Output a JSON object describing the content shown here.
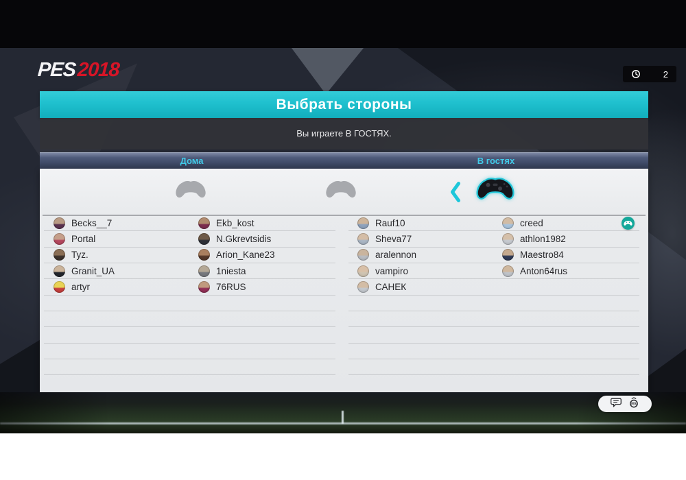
{
  "brand": {
    "pes": "PES",
    "year": "2018"
  },
  "statusbar": {
    "timer": "2"
  },
  "screen": {
    "title": "Выбрать стороны",
    "subtitle": "Вы играете В ГОСТЯХ."
  },
  "sides": {
    "home": "Дома",
    "away": "В гостях"
  },
  "controller_row": {
    "slots": [
      "idle-controller",
      "idle-controller",
      "active-controller"
    ],
    "chevron": "chevron-left-icon"
  },
  "players": {
    "home1": [
      {
        "name": "Becks__7",
        "c1": "#b99b84",
        "c2": "#5b3350"
      },
      {
        "name": "Portal",
        "c1": "#c59f8a",
        "c2": "#b5485f"
      },
      {
        "name": "Tyz.",
        "c1": "#8a6e55",
        "c2": "#3c322c"
      },
      {
        "name": "Granit_UA",
        "c1": "#cbb49b",
        "c2": "#23262c"
      },
      {
        "name": "artyr",
        "c1": "#e9d355",
        "c2": "#c8403e"
      }
    ],
    "home2": [
      {
        "name": "Ekb_kost",
        "c1": "#b08a6e",
        "c2": "#7c2d4e"
      },
      {
        "name": "N.Gkrevtsidis",
        "c1": "#6e5a48",
        "c2": "#2e3138"
      },
      {
        "name": "Arion_Kane23",
        "c1": "#a97f5f",
        "c2": "#54382a"
      },
      {
        "name": "1niesta",
        "c1": "#b4a896",
        "c2": "#77797e"
      },
      {
        "name": "76RUS",
        "c1": "#c09a7e",
        "c2": "#933057"
      }
    ],
    "away1": [
      {
        "name": "Rauf10",
        "c1": "#cdb49a",
        "c2": "#8fa3bd"
      },
      {
        "name": "Sheva77",
        "c1": "#d4bda6",
        "c2": "#aab6c4"
      },
      {
        "name": "aralennon",
        "c1": "#c9b49e",
        "c2": "#b8bcc2"
      },
      {
        "name": "vampiro",
        "c1": "#d8c0a8",
        "c2": "#cfc4b2"
      },
      {
        "name": "САНЕК",
        "c1": "#d3bda6",
        "c2": "#c3c8ce"
      }
    ],
    "away2": [
      {
        "name": "creed",
        "c1": "#d2bca4",
        "c2": "#a9c4dd",
        "badge": "controller-badge-icon"
      },
      {
        "name": "athlon1982",
        "c1": "#d5c0aa",
        "c2": "#c6cad0"
      },
      {
        "name": "Maestro84",
        "c1": "#c4a98e",
        "c2": "#2e3a56"
      },
      {
        "name": "Anton64rus",
        "c1": "#cfb89f",
        "c2": "#bfc3c9"
      }
    ]
  },
  "footer": {
    "icons": [
      "chat-icon",
      "right-stick-icon"
    ]
  },
  "colors": {
    "accent_teal": "#1fc0ce",
    "header_link": "#41cbe9",
    "badge_teal": "#14a89a",
    "logo_red": "#d71527",
    "controller_idle": "#a7a9ad",
    "controller_active_outline": "#22c6d8"
  }
}
